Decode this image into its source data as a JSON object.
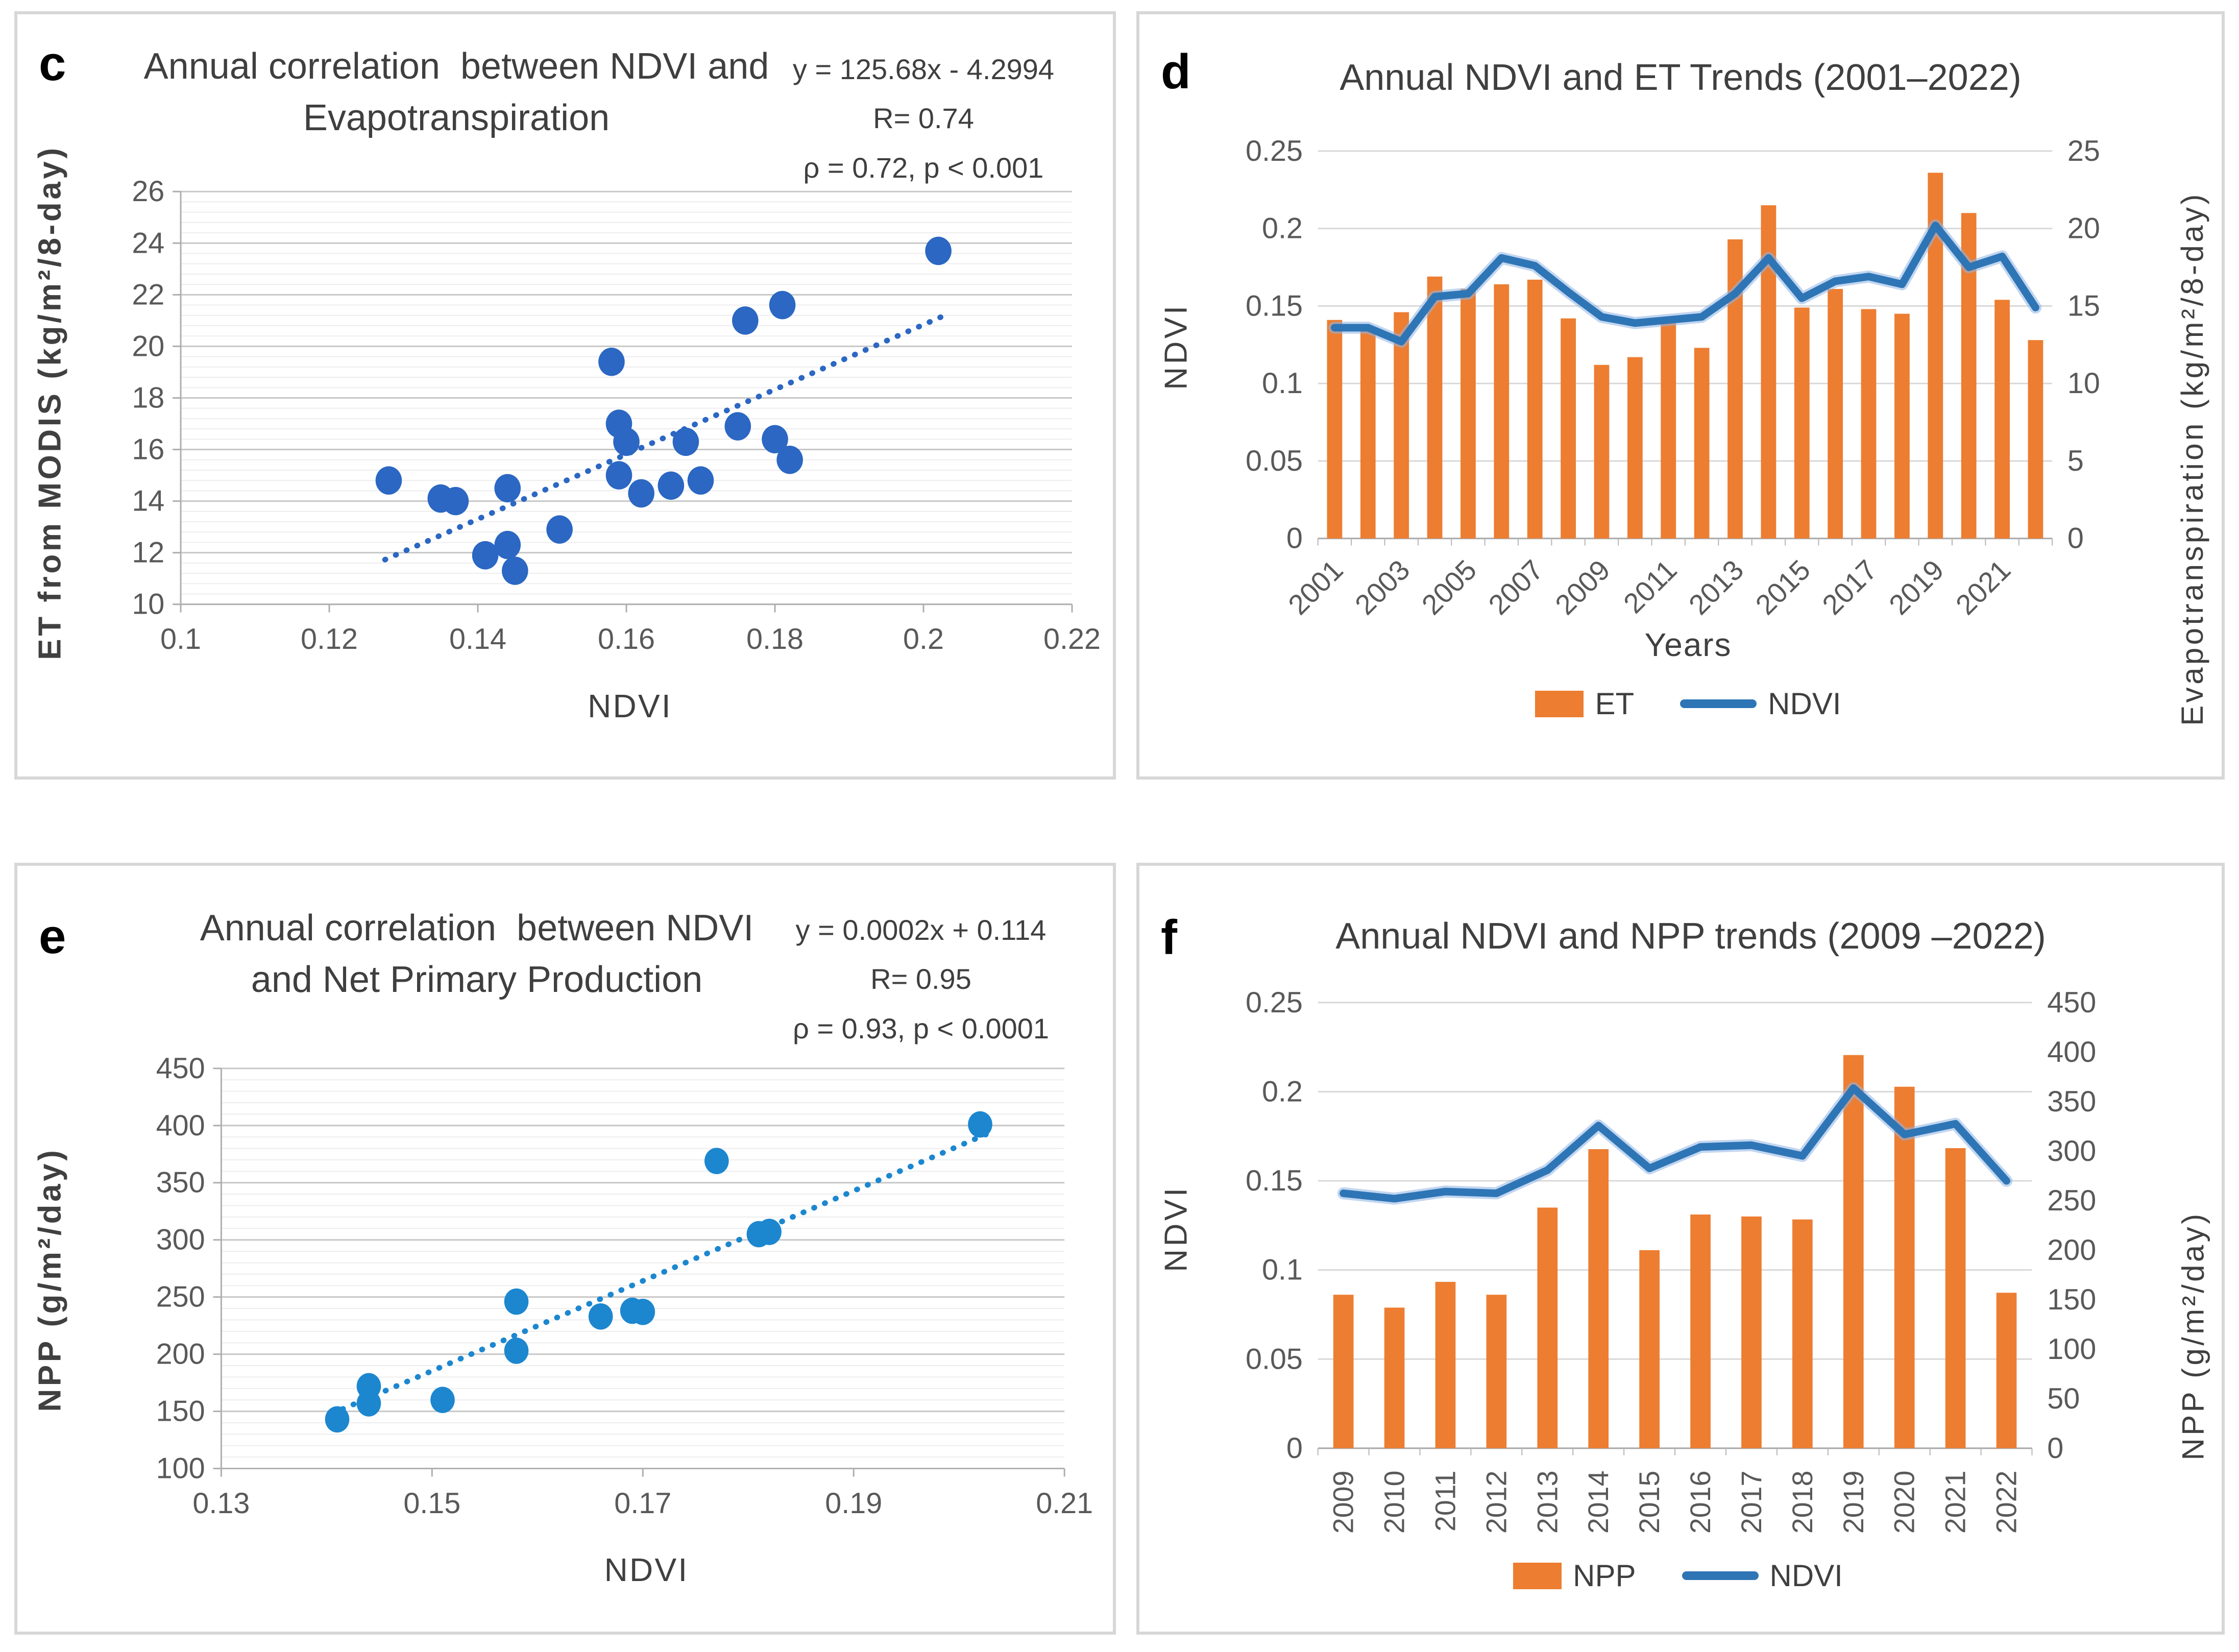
{
  "figure": {
    "panel_labels": [
      "c",
      "d",
      "e",
      "f"
    ]
  },
  "colors": {
    "bar_orange": "#ED7D31",
    "line_blue": "#2E75B6",
    "scatter_blue_c": "#2B67C3",
    "scatter_blue_e": "#1C87CF",
    "grid_major": "#c7c7c7",
    "grid_minor": "#ededed",
    "axis_line": "#aeaeae",
    "tick_text": "#595959",
    "title_text": "#3f3f3f"
  },
  "chart_data": [
    {
      "id": "c",
      "type": "scatter",
      "panel_label": "c",
      "title_lines": [
        "Annual correlation  between NDVI and",
        "Evapotranspiration"
      ],
      "annotation_lines": [
        "y = 125.68x - 4.2994",
        "R= 0.74",
        "ρ = 0.72, p < 0.001"
      ],
      "xlabel": "NDVI",
      "ylabel": "ET from MODIS (kg/m²/8-day)",
      "xlim": [
        0.1,
        0.22
      ],
      "ylim": [
        10,
        26
      ],
      "xtick_values": [
        0.1,
        0.12,
        0.14,
        0.16,
        0.18,
        0.2,
        0.22
      ],
      "xtick_labels": [
        "0.1",
        "0.12",
        "0.14",
        "0.16",
        "0.18",
        "0.2",
        "0.22"
      ],
      "ytick_values": [
        10,
        12,
        14,
        16,
        18,
        20,
        22,
        24,
        26
      ],
      "ytick_labels": [
        "10",
        "12",
        "14",
        "16",
        "18",
        "20",
        "22",
        "24",
        "26"
      ],
      "y_minor_step": 0.4,
      "point_color": "#2B67C3",
      "points": [
        [
          0.128,
          14.8
        ],
        [
          0.135,
          14.1
        ],
        [
          0.137,
          14.0
        ],
        [
          0.141,
          11.9
        ],
        [
          0.144,
          14.5
        ],
        [
          0.144,
          12.3
        ],
        [
          0.145,
          11.3
        ],
        [
          0.151,
          12.9
        ],
        [
          0.158,
          19.4
        ],
        [
          0.159,
          17.0
        ],
        [
          0.16,
          16.3
        ],
        [
          0.159,
          15.0
        ],
        [
          0.162,
          14.3
        ],
        [
          0.166,
          14.6
        ],
        [
          0.168,
          16.3
        ],
        [
          0.17,
          14.8
        ],
        [
          0.175,
          16.9
        ],
        [
          0.176,
          21.0
        ],
        [
          0.18,
          16.4
        ],
        [
          0.181,
          21.6
        ],
        [
          0.182,
          15.6
        ],
        [
          0.202,
          23.7
        ]
      ],
      "trendline": [
        [
          0.1275,
          11.73
        ],
        [
          0.2035,
          21.28
        ]
      ]
    },
    {
      "id": "d",
      "type": "bar-line",
      "panel_label": "d",
      "title": "Annual NDVI and ET Trends (2001–2022)",
      "categories": [
        "2001",
        "2002",
        "2003",
        "2004",
        "2005",
        "2006",
        "2007",
        "2008",
        "2009",
        "2010",
        "2011",
        "2012",
        "2013",
        "2014",
        "2015",
        "2016",
        "2017",
        "2018",
        "2019",
        "2020",
        "2021",
        "2022"
      ],
      "series": [
        {
          "name": "ET",
          "kind": "bar",
          "color": "#ED7D31",
          "axis": "right",
          "values": [
            14.1,
            13.4,
            14.6,
            16.9,
            16.1,
            16.4,
            16.7,
            14.2,
            11.2,
            11.7,
            14.1,
            12.3,
            19.3,
            21.5,
            14.9,
            16.1,
            14.8,
            14.5,
            23.6,
            21.0,
            15.4,
            12.8
          ]
        },
        {
          "name": "NDVI",
          "kind": "line",
          "color": "#2E75B6",
          "axis": "left",
          "values": [
            0.136,
            0.136,
            0.127,
            0.156,
            0.158,
            0.181,
            0.176,
            0.159,
            0.143,
            0.139,
            0.141,
            0.143,
            0.158,
            0.181,
            0.155,
            0.166,
            0.169,
            0.164,
            0.202,
            0.175,
            0.182,
            0.149
          ]
        }
      ],
      "left_axis": {
        "label": "NDVI",
        "lim": [
          0,
          0.25
        ],
        "tick_values": [
          0,
          0.05,
          0.1,
          0.15,
          0.2,
          0.25
        ],
        "tick_labels": [
          "0",
          "0.05",
          "0.1",
          "0.15",
          "0.2",
          "0.25"
        ]
      },
      "right_axis": {
        "label": "Evapotranspiration (kg/m²/8-day)",
        "lim": [
          0,
          25
        ],
        "tick_values": [
          0,
          5,
          10,
          15,
          20,
          25
        ],
        "tick_labels": [
          "0",
          "5",
          "10",
          "15",
          "20",
          "25"
        ]
      },
      "xlabel": "Years",
      "xtick_labels": [
        "2001",
        "2003",
        "2005",
        "2007",
        "2009",
        "2011",
        "2013",
        "2015",
        "2017",
        "2019",
        "2021"
      ],
      "xtick_rotation": -45,
      "legend": [
        "ET",
        "NDVI"
      ]
    },
    {
      "id": "e",
      "type": "scatter",
      "panel_label": "e",
      "title_lines": [
        "Annual correlation  between NDVI",
        "and Net Primary Production"
      ],
      "annotation_lines": [
        "y = 0.0002x + 0.114",
        "R= 0.95",
        "ρ = 0.93, p < 0.0001"
      ],
      "xlabel": "NDVI",
      "ylabel": "NPP (g/m²/day)",
      "xlim": [
        0.13,
        0.21
      ],
      "ylim": [
        100,
        450
      ],
      "xtick_values": [
        0.13,
        0.15,
        0.17,
        0.19,
        0.21
      ],
      "xtick_labels": [
        "0.13",
        "0.15",
        "0.17",
        "0.19",
        "0.21"
      ],
      "ytick_values": [
        100,
        150,
        200,
        250,
        300,
        350,
        400,
        450
      ],
      "ytick_labels": [
        "100",
        "150",
        "200",
        "250",
        "300",
        "350",
        "400",
        "450"
      ],
      "y_minor_step": 10,
      "point_color": "#1C87CF",
      "points": [
        [
          0.141,
          143
        ],
        [
          0.144,
          157
        ],
        [
          0.144,
          172
        ],
        [
          0.151,
          160
        ],
        [
          0.158,
          203
        ],
        [
          0.158,
          246
        ],
        [
          0.166,
          233
        ],
        [
          0.169,
          238
        ],
        [
          0.17,
          237
        ],
        [
          0.177,
          369
        ],
        [
          0.181,
          305
        ],
        [
          0.182,
          307
        ],
        [
          0.202,
          401
        ]
      ],
      "trendline": [
        [
          0.1405,
          148
        ],
        [
          0.2035,
          396
        ]
      ]
    },
    {
      "id": "f",
      "type": "bar-line",
      "panel_label": "f",
      "title": "Annual NDVI and NPP trends (2009 –2022)",
      "categories": [
        "2009",
        "2010",
        "2011",
        "2012",
        "2013",
        "2014",
        "2015",
        "2016",
        "2017",
        "2018",
        "2019",
        "2020",
        "2021",
        "2022"
      ],
      "series": [
        {
          "name": "NPP",
          "kind": "bar",
          "color": "#ED7D31",
          "axis": "right",
          "values": [
            155,
            142,
            168,
            155,
            243,
            302,
            200,
            236,
            234,
            231,
            397,
            365,
            303,
            157
          ]
        },
        {
          "name": "NDVI",
          "kind": "line",
          "color": "#2E75B6",
          "axis": "left",
          "values": [
            0.143,
            0.14,
            0.144,
            0.143,
            0.156,
            0.181,
            0.157,
            0.169,
            0.17,
            0.164,
            0.202,
            0.176,
            0.182,
            0.15
          ]
        }
      ],
      "left_axis": {
        "label": "NDVI",
        "lim": [
          0,
          0.25
        ],
        "tick_values": [
          0,
          0.05,
          0.1,
          0.15,
          0.2,
          0.25
        ],
        "tick_labels": [
          "0",
          "0.05",
          "0.1",
          "0.15",
          "0.2",
          "0.25"
        ]
      },
      "right_axis": {
        "label": "NPP (g/m²/day)",
        "lim": [
          0,
          450
        ],
        "tick_values": [
          0,
          50,
          100,
          150,
          200,
          250,
          300,
          350,
          400,
          450
        ],
        "tick_labels": [
          "0",
          "50",
          "100",
          "150",
          "200",
          "250",
          "300",
          "350",
          "400",
          "450"
        ]
      },
      "xtick_labels": [
        "2009",
        "2010",
        "2011",
        "2012",
        "2013",
        "2014",
        "2015",
        "2016",
        "2017",
        "2018",
        "2019",
        "2020",
        "2021",
        "2022"
      ],
      "xtick_rotation": -90,
      "legend": [
        "NPP",
        "NDVI"
      ]
    }
  ]
}
